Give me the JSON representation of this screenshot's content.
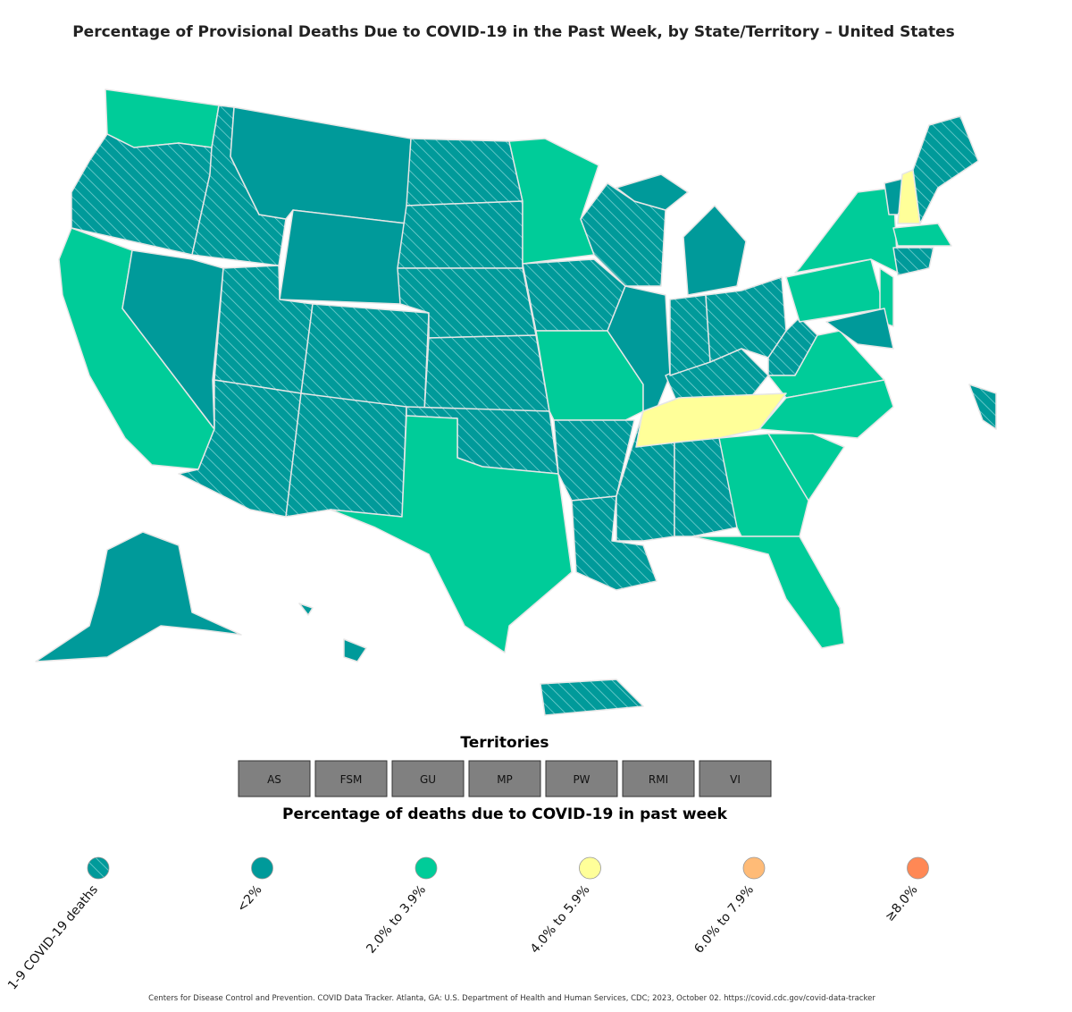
{
  "title": "Percentage of Provisional Deaths Due to COVID-19 in the Past Week, by State/Territory – United States",
  "territories": {
    "title": "Territories",
    "items": [
      "AS",
      "FSM",
      "GU",
      "MP",
      "PW",
      "RMI",
      "VI"
    ]
  },
  "legend": {
    "title": "Percentage of deaths due to COVID-19 in past week",
    "items": [
      {
        "label": "1-9 COVID-19 deaths",
        "color": "#009a9a",
        "hatch": true
      },
      {
        "label": "<2%",
        "color": "#009a9a"
      },
      {
        "label": "2.0% to 3.9%",
        "color": "#00cc99"
      },
      {
        "label": "4.0% to 5.9%",
        "color": "#ffff99"
      },
      {
        "label": "6.0% to 7.9%",
        "color": "#ffbb77"
      },
      {
        "label": "≥8.0%",
        "color": "#ff8855"
      }
    ]
  },
  "citation": "Centers for Disease Control and Prevention. COVID Data Tracker. Atlanta, GA: U.S. Department of Health and Human Services, CDC; 2023, October 02. https://covid.cdc.gov/covid-data-tracker"
}
